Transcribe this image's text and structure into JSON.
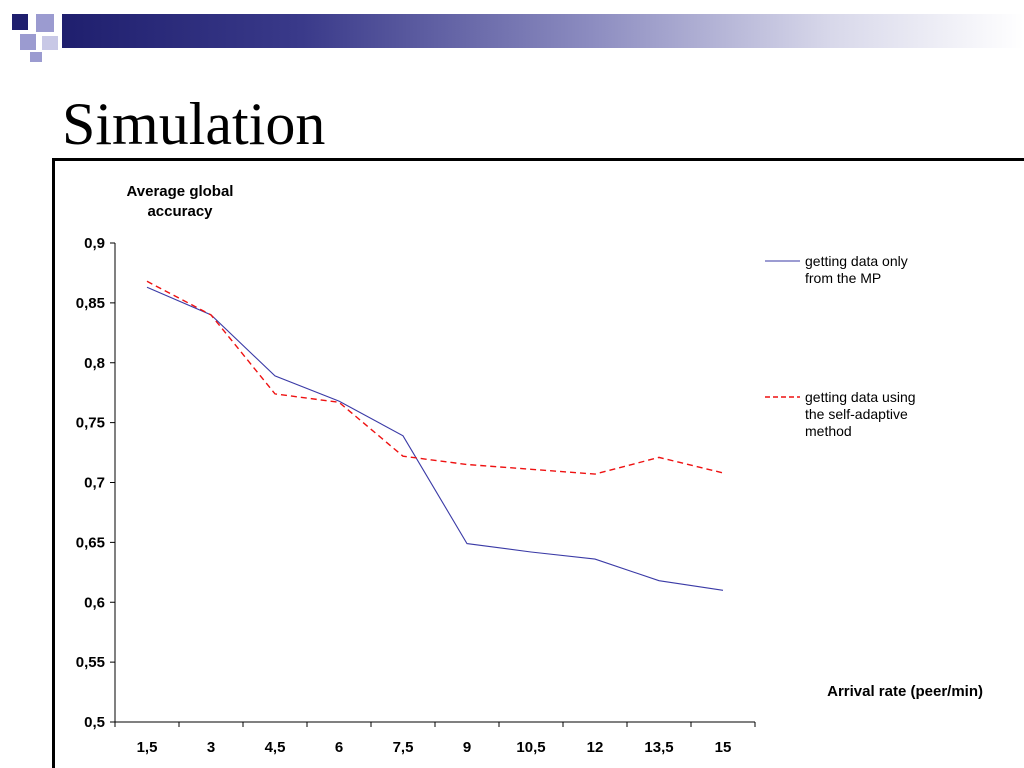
{
  "slide": {
    "title": "Simulation"
  },
  "colors": {
    "banner_dark": "#1f1f6e",
    "banner_light": "#9999cc",
    "series1": "#3a3aa6",
    "series2": "#ee1111"
  },
  "chart_data": {
    "type": "line",
    "ylabel": "Average global accuracy",
    "xlabel": "Arrival rate (peer/min)",
    "ylim": [
      0.5,
      0.9
    ],
    "yticks": [
      "0,9",
      "0,85",
      "0,8",
      "0,75",
      "0,7",
      "0,65",
      "0,6",
      "0,55",
      "0,5"
    ],
    "yticks_values": [
      0.9,
      0.85,
      0.8,
      0.75,
      0.7,
      0.65,
      0.6,
      0.55,
      0.5
    ],
    "categories": [
      "1,5",
      "3",
      "4,5",
      "6",
      "7,5",
      "9",
      "10,5",
      "12",
      "13,5",
      "15"
    ],
    "series": [
      {
        "name": "getting data only from the MP",
        "style": "solid",
        "color": "#3a3aa6",
        "values": [
          0.863,
          0.84,
          0.789,
          0.768,
          0.739,
          0.649,
          0.642,
          0.636,
          0.618,
          0.61
        ]
      },
      {
        "name": "getting data using the self-adaptive method",
        "style": "dashed",
        "color": "#ee1111",
        "values": [
          0.868,
          0.84,
          0.774,
          0.767,
          0.722,
          0.715,
          0.711,
          0.707,
          0.721,
          0.708
        ]
      }
    ],
    "legend": [
      {
        "lines": [
          "getting data only",
          "from the MP"
        ]
      },
      {
        "lines": [
          "getting data using",
          "the self-adaptive",
          "method"
        ]
      }
    ],
    "legend_position": "right",
    "grid": false
  }
}
